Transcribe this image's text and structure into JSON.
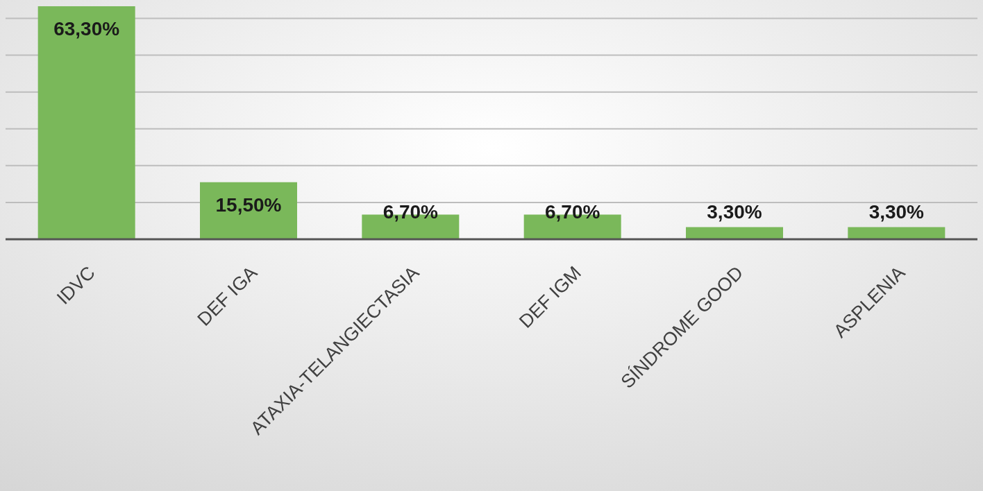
{
  "chart_data": {
    "type": "bar",
    "categories": [
      "IDVC",
      "DEF IGA",
      "ATAXIA-TELANGIECTASIA",
      "DEF IGM",
      "SÍNDROME GOOD",
      "ASPLENIA"
    ],
    "values": [
      63.3,
      15.5,
      6.7,
      6.7,
      3.3,
      3.3
    ],
    "value_labels": [
      "63,30%",
      "15,50%",
      "6,70%",
      "6,70%",
      "3,30%",
      "3,30%"
    ],
    "color": "#7ab85a",
    "ylim": [
      0,
      65
    ],
    "yticks": [
      {
        "value": 0,
        "label": null
      },
      {
        "value": 10,
        "label": null
      },
      {
        "value": 20,
        "label": null
      },
      {
        "value": 30,
        "label": null
      },
      {
        "value": 40,
        "label": null
      },
      {
        "value": 50,
        "label": null
      },
      {
        "value": 60,
        "label": null
      }
    ],
    "grid": "y",
    "tick_labels": "x"
  }
}
